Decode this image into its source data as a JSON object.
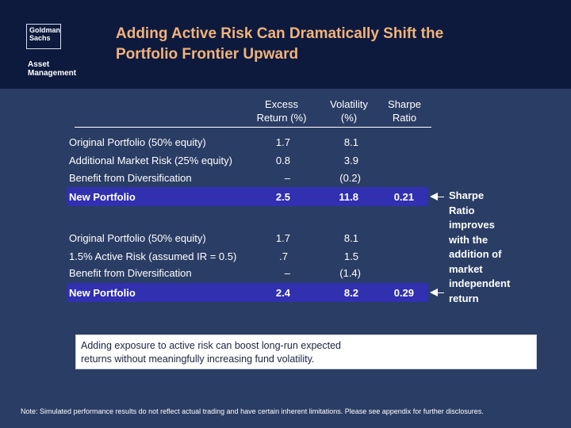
{
  "logo": {
    "line1": "Goldman",
    "line2": "Sachs",
    "sub1": "Asset",
    "sub2": "Management"
  },
  "title": {
    "line1": "Adding Active Risk Can Dramatically Shift the",
    "line2": "Portfolio Frontier Upward"
  },
  "columns": {
    "excess_return": {
      "line1": "Excess",
      "line2": "Return (%)"
    },
    "volatility": {
      "line1": "Volatility",
      "line2": "(%)"
    },
    "sharpe": {
      "line1": "Sharpe",
      "line2": "Ratio"
    }
  },
  "scenario1": {
    "rows": [
      {
        "label": "Original Portfolio (50% equity)",
        "excess": "1.7",
        "vol": "8.1",
        "sharpe": ""
      },
      {
        "label": "Additional Market Risk (25% equity)",
        "excess": "0.8",
        "vol": "3.9",
        "sharpe": ""
      },
      {
        "label": "Benefit from Diversification",
        "excess": "–",
        "vol": "(0.2)",
        "sharpe": ""
      }
    ],
    "total": {
      "label": "New Portfolio",
      "excess": "2.5",
      "vol": "11.8",
      "sharpe": "0.21"
    }
  },
  "scenario2": {
    "rows": [
      {
        "label": "Original Portfolio (50% equity)",
        "excess": "1.7",
        "vol": "8.1",
        "sharpe": ""
      },
      {
        "label": "1.5% Active Risk (assumed IR = 0.5)",
        "excess": ".7",
        "vol": "1.5",
        "sharpe": ""
      },
      {
        "label": "Benefit from Diversification",
        "excess": "–",
        "vol": "(1.4)",
        "sharpe": ""
      }
    ],
    "total": {
      "label": "New Portfolio",
      "excess": "2.4",
      "vol": "8.2",
      "sharpe": "0.29"
    }
  },
  "callout": {
    "lines": [
      "Sharpe",
      "Ratio",
      "improves",
      "with the",
      "addition of",
      "market",
      "independent",
      "return"
    ]
  },
  "note_box": {
    "line1": "Adding exposure to active risk can boost long-run expected",
    "line2": "returns without meaningfully increasing fund volatility."
  },
  "footer": "Note: Simulated performance results do not reflect actual trading and have certain inherent limitations.  Please see appendix for further disclosures."
}
